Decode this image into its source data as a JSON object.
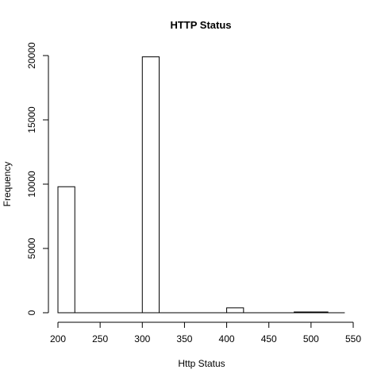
{
  "chart_data": {
    "type": "bar",
    "title": "HTTP Status",
    "xlabel": "Http Status",
    "ylabel": "Frequency",
    "xlim": [
      200,
      550
    ],
    "ylim": [
      0,
      20000
    ],
    "x_ticks": [
      200,
      250,
      300,
      350,
      400,
      450,
      500,
      550
    ],
    "y_ticks": [
      0,
      5000,
      10000,
      15000,
      20000
    ],
    "bin_width": 20,
    "bins": [
      {
        "start": 200,
        "end": 220,
        "value": 9800
      },
      {
        "start": 220,
        "end": 240,
        "value": 0
      },
      {
        "start": 240,
        "end": 260,
        "value": 0
      },
      {
        "start": 260,
        "end": 280,
        "value": 0
      },
      {
        "start": 280,
        "end": 300,
        "value": 0
      },
      {
        "start": 300,
        "end": 320,
        "value": 19900
      },
      {
        "start": 320,
        "end": 340,
        "value": 0
      },
      {
        "start": 340,
        "end": 360,
        "value": 0
      },
      {
        "start": 360,
        "end": 380,
        "value": 0
      },
      {
        "start": 380,
        "end": 400,
        "value": 0
      },
      {
        "start": 400,
        "end": 420,
        "value": 380
      },
      {
        "start": 420,
        "end": 440,
        "value": 0
      },
      {
        "start": 440,
        "end": 460,
        "value": 0
      },
      {
        "start": 460,
        "end": 480,
        "value": 0
      },
      {
        "start": 480,
        "end": 500,
        "value": 60
      },
      {
        "start": 500,
        "end": 520,
        "value": 60
      },
      {
        "start": 520,
        "end": 540,
        "value": 0
      }
    ]
  }
}
